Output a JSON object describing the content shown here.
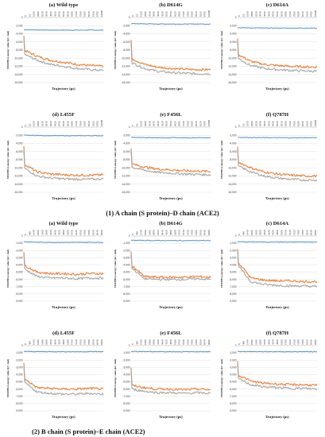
{
  "colors": {
    "series_top": "#5b9bd5",
    "series_mid": "#ed7d31",
    "series_low": "#a5a5a5",
    "grid": "#d9d9d9"
  },
  "sections": [
    {
      "caption": "(1)  A chain (S protein)–D chain (ACE2)"
    },
    {
      "caption": "(2) B chain (S protein)–E chain (ACE2)"
    }
  ],
  "chart_data": [
    {
      "section": 1,
      "type": "line",
      "title": "(a) Wild type",
      "xlabel": "Trajectory (ps)",
      "ylabel": "MM/PBSA energy value (kJ / mol)",
      "x_ticks": [
        "0",
        "10",
        "1520",
        "2000",
        "2530",
        "3040",
        "4010",
        "4520",
        "5030",
        "5540",
        "6010",
        "6580",
        "7130",
        "7590",
        "8100",
        "8610",
        "9120",
        "9700",
        "10000"
      ],
      "y_ticks": [
        -16000,
        -14000,
        -12000,
        -10000,
        -8000,
        -6000,
        -4000,
        -2000,
        0
      ],
      "ylim": [
        -16000,
        0
      ],
      "series": [
        {
          "values": [
            -3000,
            -3050,
            -3100,
            -3100,
            -3120,
            -3100,
            -3120
          ]
        },
        {
          "values": [
            -8000,
            -9500,
            -10500,
            -11000,
            -11500,
            -11800,
            -12000
          ]
        },
        {
          "values": [
            -9000,
            -10500,
            -11500,
            -12000,
            -12500,
            -12800,
            -13000
          ]
        }
      ]
    },
    {
      "section": 1,
      "type": "line",
      "title": "(b) D614G",
      "xlabel": "Trajectory (ps)",
      "ylabel": "MM/PBSA energy value (kJ / mol)",
      "x_ticks": [
        "0",
        "10",
        "1520",
        "2000",
        "2530",
        "3040",
        "4010",
        "4520",
        "5030",
        "5540",
        "6010",
        "6580",
        "7130",
        "7590",
        "8100",
        "8610",
        "9120",
        "9700",
        "10000"
      ],
      "y_ticks": [
        -16000,
        -14000,
        -12000,
        -10000,
        -8000,
        -6000,
        -4000,
        -2000,
        0
      ],
      "ylim": [
        -16000,
        0
      ],
      "series": [
        {
          "values": [
            -1500,
            -1550,
            -1600,
            -1600,
            -1620,
            -1600,
            -1610
          ]
        },
        {
          "values": [
            -10000,
            -11500,
            -12200,
            -12500,
            -12700,
            -12800,
            -12800
          ]
        },
        {
          "values": [
            -11000,
            -12500,
            -13200,
            -13500,
            -13700,
            -13800,
            -13800
          ]
        }
      ]
    },
    {
      "section": 1,
      "type": "line",
      "title": "(c) D614A",
      "xlabel": "Trajectory (ps)",
      "ylabel": "MM/PBSA energy value (kJ / mol)",
      "x_ticks": [
        "0",
        "10",
        "1520",
        "2000",
        "2530",
        "3040",
        "4010",
        "4520",
        "5030",
        "5540",
        "6010",
        "6580",
        "7130",
        "7590",
        "8100",
        "8610",
        "9120",
        "9700",
        "10000"
      ],
      "y_ticks": [
        -16000,
        -14000,
        -12000,
        -10000,
        -8000,
        -6000,
        -4000,
        -2000,
        0
      ],
      "ylim": [
        -16000,
        0
      ],
      "series": [
        {
          "values": [
            -2500,
            -2550,
            -2600,
            -2600,
            -2620,
            -2600,
            -2610
          ]
        },
        {
          "values": [
            -9000,
            -10800,
            -11500,
            -11800,
            -12000,
            -12100,
            -12200
          ]
        },
        {
          "values": [
            -10000,
            -11800,
            -12500,
            -12800,
            -13000,
            -13100,
            -13200
          ]
        }
      ]
    },
    {
      "section": 1,
      "type": "line",
      "title": "(d) L455F",
      "xlabel": "Trajectory (ps)",
      "ylabel": "MM/PBSA energy value (kJ / mol)",
      "x_ticks": [
        "0",
        "10",
        "1520",
        "2000",
        "2530",
        "3040",
        "4010",
        "4520",
        "5030",
        "5540",
        "6010",
        "6580",
        "7130",
        "7590",
        "8100",
        "8610",
        "9120",
        "9700",
        "10000"
      ],
      "y_ticks": [
        -16000,
        -14000,
        -12000,
        -10000,
        -8000,
        -6000,
        -4000,
        -2000,
        0
      ],
      "ylim": [
        -16000,
        0
      ],
      "series": [
        {
          "values": [
            -2000,
            -2050,
            -2100,
            -2100,
            -2120,
            -2100,
            -2110
          ]
        },
        {
          "values": [
            -9000,
            -11000,
            -11500,
            -11700,
            -11800,
            -11800,
            -11700
          ]
        },
        {
          "values": [
            -10000,
            -12000,
            -12500,
            -12700,
            -12800,
            -12800,
            -12700
          ]
        }
      ]
    },
    {
      "section": 1,
      "type": "line",
      "title": "(e) F456L",
      "xlabel": "Trajectory (ps)",
      "ylabel": "MM/PBSA energy value (kJ / mol)",
      "x_ticks": [
        "0",
        "10",
        "1520",
        "2000",
        "2530",
        "3040",
        "4010",
        "4520",
        "5030",
        "5540",
        "6010",
        "6580",
        "7130",
        "7590",
        "8100",
        "8610",
        "9120",
        "9700",
        "10000"
      ],
      "y_ticks": [
        -16000,
        -14000,
        -12000,
        -10000,
        -8000,
        -6000,
        -4000,
        -2000,
        0
      ],
      "ylim": [
        -16000,
        0
      ],
      "series": [
        {
          "values": [
            -2500,
            -2550,
            -2600,
            -2600,
            -2620,
            -2600,
            -2610
          ]
        },
        {
          "values": [
            -9000,
            -9800,
            -10300,
            -10500,
            -10700,
            -10800,
            -10900
          ]
        },
        {
          "values": [
            -9800,
            -10600,
            -11100,
            -11300,
            -11500,
            -11600,
            -11700
          ]
        }
      ]
    },
    {
      "section": 1,
      "type": "line",
      "title": "(f) Q787H",
      "xlabel": "Trajectory (ps)",
      "ylabel": "MM/PBSA energy value (kJ / mol)",
      "x_ticks": [
        "0",
        "10",
        "1520",
        "2000",
        "2530",
        "3040",
        "4010",
        "4520",
        "5030",
        "5540",
        "6010",
        "6580",
        "7130",
        "7590",
        "8100",
        "8610",
        "9120",
        "9700",
        "10000"
      ],
      "y_ticks": [
        -16000,
        -14000,
        -12000,
        -10000,
        -8000,
        -6000,
        -4000,
        -2000,
        0
      ],
      "ylim": [
        -16000,
        0
      ],
      "series": [
        {
          "values": [
            -2500,
            -2550,
            -2600,
            -2600,
            -2620,
            -2600,
            -2610
          ]
        },
        {
          "values": [
            -8500,
            -10000,
            -11000,
            -11500,
            -11800,
            -12000,
            -12000
          ]
        },
        {
          "values": [
            -9500,
            -11000,
            -12000,
            -12500,
            -12800,
            -13000,
            -13000
          ]
        }
      ]
    },
    {
      "section": 2,
      "type": "line",
      "title": "(a) Wild type",
      "xlabel": "Trajectory (ps)",
      "ylabel": "MM/PBSA energy value (kJ / mol)",
      "x_ticks": [
        "0",
        "480",
        "1440",
        "1800",
        "2400",
        "2880",
        "3360",
        "3840",
        "4320",
        "4800",
        "5280",
        "5760",
        "6240",
        "6720",
        "7200",
        "7680",
        "8160",
        "8640",
        "9000"
      ],
      "y_ticks": [
        -9000,
        -8000,
        -7000,
        -6000,
        -5000,
        -4000,
        -3000,
        -2000,
        -1000,
        0
      ],
      "ylim": [
        -9000,
        0
      ],
      "series": [
        {
          "values": [
            -800,
            -850,
            -870,
            -880,
            -880,
            -870,
            -880
          ]
        },
        {
          "values": [
            -4000,
            -5000,
            -5200,
            -5200,
            -5300,
            -5200,
            -5200
          ]
        },
        {
          "values": [
            -4500,
            -5600,
            -5800,
            -5800,
            -5900,
            -5800,
            -5800
          ]
        }
      ]
    },
    {
      "section": 2,
      "type": "line",
      "title": "(b) D614G",
      "xlabel": "Trajectory (ps)",
      "ylabel": "MM/PBSA energy value (kJ / mol)",
      "x_ticks": [
        "0",
        "480",
        "1440",
        "1800",
        "2400",
        "2880",
        "3360",
        "3840",
        "4320",
        "4800",
        "5280",
        "5760",
        "6240",
        "6720",
        "7200",
        "7680",
        "8160",
        "8640",
        "9000"
      ],
      "y_ticks": [
        -9000,
        -8000,
        -7000,
        -6000,
        -5000,
        -4000,
        -3000,
        -2000,
        -1000,
        0
      ],
      "ylim": [
        -9000,
        0
      ],
      "series": [
        {
          "values": [
            -600,
            -620,
            -630,
            -630,
            -640,
            -630,
            -630
          ]
        },
        {
          "values": [
            -4000,
            -5600,
            -5700,
            -5700,
            -5700,
            -5600,
            -5700
          ]
        },
        {
          "values": [
            -4300,
            -5900,
            -6000,
            -6000,
            -6000,
            -5900,
            -6000
          ]
        }
      ]
    },
    {
      "section": 2,
      "type": "line",
      "title": "(c) D614A",
      "xlabel": "Trajectory (ps)",
      "ylabel": "MM/PBSA energy value (kJ / mol)",
      "x_ticks": [
        "0",
        "480",
        "1440",
        "1800",
        "2400",
        "2880",
        "3360",
        "3840",
        "4320",
        "4800",
        "5280",
        "5760",
        "6240",
        "6720",
        "7200",
        "7680",
        "8160",
        "8640",
        "9000"
      ],
      "y_ticks": [
        -9000,
        -8000,
        -7000,
        -6000,
        -5000,
        -4000,
        -3000,
        -2000,
        -1000,
        0
      ],
      "ylim": [
        -9000,
        0
      ],
      "series": [
        {
          "values": [
            -800,
            -820,
            -830,
            -830,
            -840,
            -830,
            -830
          ]
        },
        {
          "values": [
            -3500,
            -5800,
            -6100,
            -6200,
            -6200,
            -6300,
            -6300
          ]
        },
        {
          "values": [
            -4000,
            -6300,
            -6700,
            -6800,
            -6900,
            -6900,
            -7000
          ]
        }
      ]
    },
    {
      "section": 2,
      "type": "line",
      "title": "(d) L455F",
      "xlabel": "Trajectory (ps)",
      "ylabel": "MM/PBSA energy value (kJ / mol)",
      "x_ticks": [
        "0",
        "480",
        "1440",
        "1800",
        "2400",
        "2880",
        "3360",
        "3840",
        "4320",
        "4800",
        "5280",
        "5760",
        "6240",
        "6720",
        "7200",
        "7680",
        "8160",
        "8640",
        "9000"
      ],
      "y_ticks": [
        -9000,
        -8000,
        -7000,
        -6000,
        -5000,
        -4000,
        -3000,
        -2000,
        -1000,
        0
      ],
      "ylim": [
        -9000,
        0
      ],
      "series": [
        {
          "values": [
            -800,
            -820,
            -830,
            -830,
            -840,
            -830,
            -830
          ]
        },
        {
          "values": [
            -4500,
            -5800,
            -5900,
            -6000,
            -6000,
            -5900,
            -6000
          ]
        },
        {
          "values": [
            -5000,
            -6400,
            -6600,
            -6700,
            -6700,
            -6600,
            -6700
          ]
        }
      ]
    },
    {
      "section": 2,
      "type": "line",
      "title": "(e) F456L",
      "xlabel": "Trajectory (ps)",
      "ylabel": "MM/PBSA energy value (kJ / mol)",
      "x_ticks": [
        "0",
        "480",
        "1440",
        "1800",
        "2400",
        "2880",
        "3360",
        "3840",
        "4320",
        "4800",
        "5280",
        "5760",
        "6240",
        "6720",
        "7200",
        "7680",
        "8160",
        "8640",
        "9000"
      ],
      "y_ticks": [
        -9000,
        -8000,
        -7000,
        -6000,
        -5000,
        -4000,
        -3000,
        -2000,
        -1000,
        0
      ],
      "ylim": [
        -9000,
        0
      ],
      "series": [
        {
          "values": [
            -800,
            -820,
            -830,
            -830,
            -840,
            -830,
            -830
          ]
        },
        {
          "values": [
            -5500,
            -5800,
            -6000,
            -6000,
            -6100,
            -6000,
            -6100
          ]
        },
        {
          "values": [
            -6000,
            -6300,
            -6500,
            -6500,
            -6600,
            -6500,
            -6600
          ]
        }
      ]
    },
    {
      "section": 2,
      "type": "line",
      "title": "(f) Q787H",
      "xlabel": "Trajectory (ps)",
      "ylabel": "MM/PBSA energy value (kJ / mol)",
      "x_ticks": [
        "0",
        "480",
        "1440",
        "1800",
        "2400",
        "2880",
        "3360",
        "3840",
        "4320",
        "4800",
        "5280",
        "5760",
        "6240",
        "6720",
        "7200",
        "7680",
        "8160",
        "8640",
        "9000"
      ],
      "y_ticks": [
        -9000,
        -8000,
        -7000,
        -6000,
        -5000,
        -4000,
        -3000,
        -2000,
        -1000,
        0
      ],
      "ylim": [
        -9000,
        0
      ],
      "series": [
        {
          "values": [
            -800,
            -820,
            -830,
            -830,
            -840,
            -830,
            -830
          ]
        },
        {
          "values": [
            -4000,
            -4900,
            -5200,
            -5300,
            -5400,
            -5400,
            -5500
          ]
        },
        {
          "values": [
            -4500,
            -5400,
            -5700,
            -5800,
            -5900,
            -5900,
            -6000
          ]
        }
      ]
    }
  ]
}
